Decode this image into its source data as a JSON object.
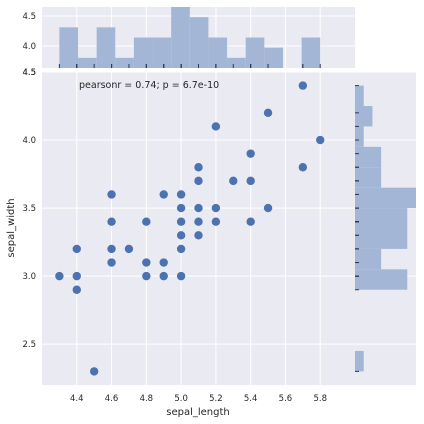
{
  "chart_data": {
    "type": "scatter",
    "subtype": "jointplot",
    "xlabel": "sepal_length",
    "ylabel": "sepal_width",
    "xlim": [
      4.2,
      6.0
    ],
    "ylim": [
      2.2,
      4.5
    ],
    "xticks": [
      4.4,
      4.6,
      4.8,
      5.0,
      5.2,
      5.4,
      5.6,
      5.8
    ],
    "yticks": [
      2.5,
      3.0,
      3.5,
      4.0,
      4.5
    ],
    "annotation": "pearsonr = 0.74; p = 6.7e-10",
    "grid": true,
    "colors": {
      "point": "#4c72b0",
      "hist": "#a4b6d6",
      "background": "#eaeaf2",
      "grid": "#ffffff"
    },
    "points": [
      [
        4.3,
        3.0
      ],
      [
        4.4,
        3.2
      ],
      [
        4.4,
        3.0
      ],
      [
        4.4,
        2.9
      ],
      [
        4.5,
        2.3
      ],
      [
        4.6,
        3.6
      ],
      [
        4.6,
        3.4
      ],
      [
        4.6,
        3.2
      ],
      [
        4.6,
        3.1
      ],
      [
        4.7,
        3.2
      ],
      [
        4.8,
        3.4
      ],
      [
        4.8,
        3.1
      ],
      [
        4.8,
        3.0
      ],
      [
        4.9,
        3.6
      ],
      [
        4.9,
        3.1
      ],
      [
        4.9,
        3.0
      ],
      [
        5.0,
        3.6
      ],
      [
        5.0,
        3.5
      ],
      [
        5.0,
        3.4
      ],
      [
        5.0,
        3.3
      ],
      [
        5.0,
        3.2
      ],
      [
        5.0,
        3.0
      ],
      [
        5.1,
        3.8
      ],
      [
        5.1,
        3.7
      ],
      [
        5.1,
        3.5
      ],
      [
        5.1,
        3.4
      ],
      [
        5.1,
        3.3
      ],
      [
        5.2,
        4.1
      ],
      [
        5.2,
        3.5
      ],
      [
        5.2,
        3.4
      ],
      [
        5.3,
        3.7
      ],
      [
        5.4,
        3.9
      ],
      [
        5.4,
        3.7
      ],
      [
        5.4,
        3.4
      ],
      [
        5.5,
        4.2
      ],
      [
        5.5,
        3.5
      ],
      [
        5.7,
        4.4
      ],
      [
        5.7,
        3.8
      ],
      [
        5.8,
        4.0
      ]
    ]
  }
}
